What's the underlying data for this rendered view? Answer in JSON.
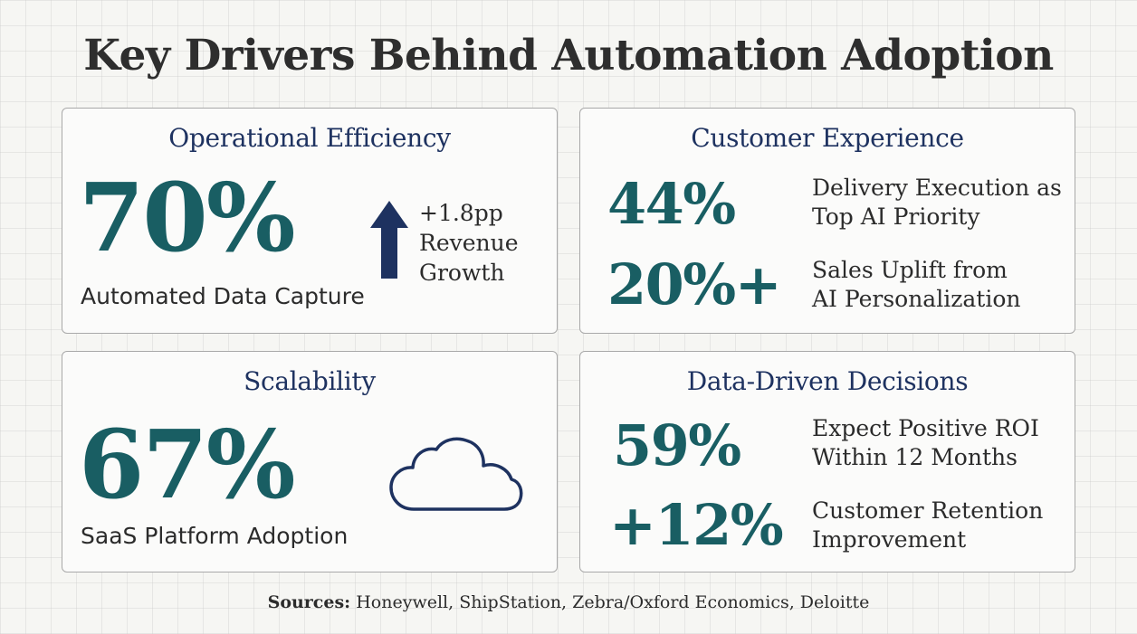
{
  "title": "Key Drivers Behind Automation Adoption",
  "colors": {
    "stat": "#195e63",
    "heading": "#1e3260",
    "arrow": "#1e3260",
    "cloud": "#1e3260"
  },
  "cards": {
    "operational": {
      "title": "Operational Efficiency",
      "stat": "70%",
      "stat_label": "Automated Data Capture",
      "icon": "arrow-up-icon",
      "side_lines": [
        "+1.8pp",
        "Revenue",
        "Growth"
      ]
    },
    "customer": {
      "title": "Customer Experience",
      "metrics": [
        {
          "value": "44%",
          "lines": [
            "Delivery Execution as",
            "Top AI Priority"
          ]
        },
        {
          "value": "20%+",
          "lines": [
            "Sales Uplift from",
            "AI Personalization"
          ]
        }
      ]
    },
    "scalability": {
      "title": "Scalability",
      "stat": "67%",
      "stat_label": "SaaS Platform Adoption",
      "icon": "cloud-icon"
    },
    "data_driven": {
      "title": "Data-Driven Decisions",
      "metrics": [
        {
          "value": "59%",
          "lines": [
            "Expect Positive ROI",
            "Within 12 Months"
          ]
        },
        {
          "value": "+12%",
          "lines": [
            "Customer Retention",
            "Improvement"
          ]
        }
      ]
    }
  },
  "sources": {
    "label": "Sources:",
    "text": "Honeywell, ShipStation, Zebra/Oxford Economics, Deloitte"
  }
}
